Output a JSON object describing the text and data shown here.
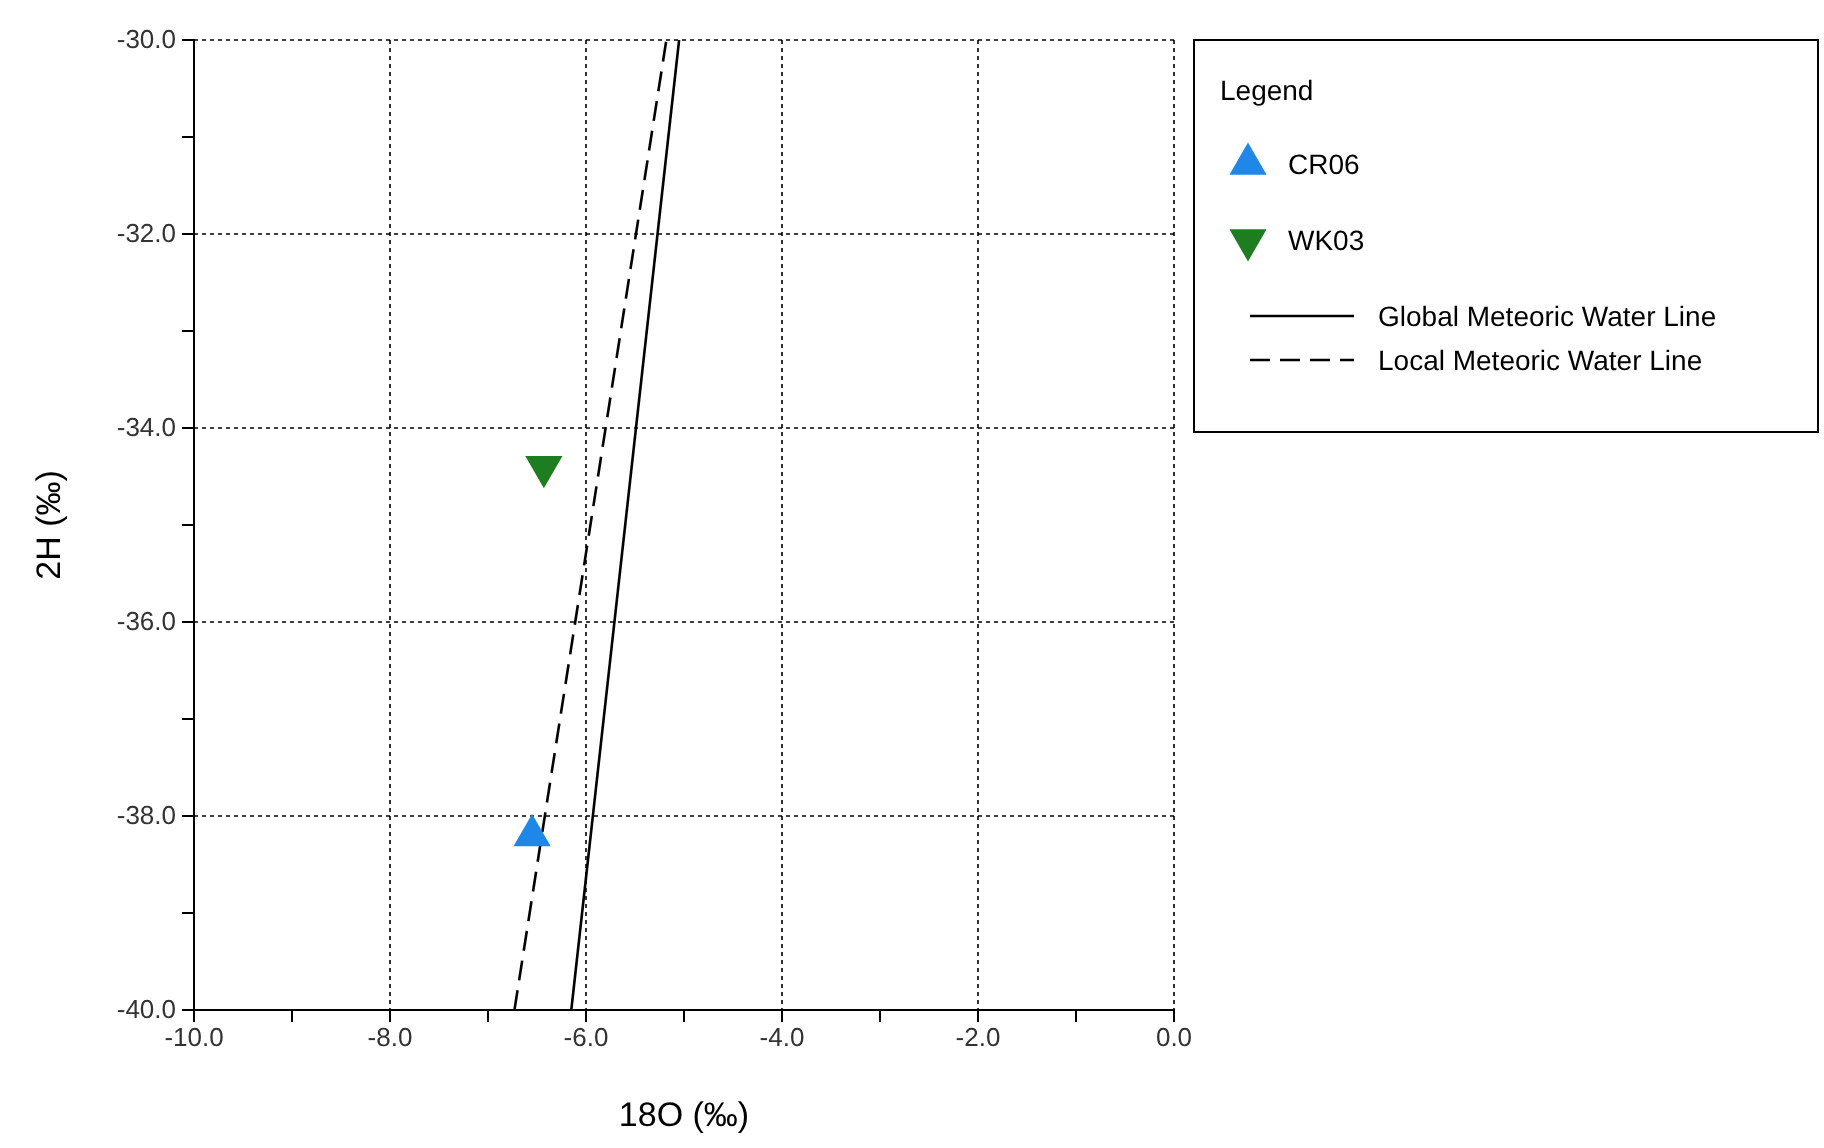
{
  "chart_data": {
    "type": "scatter",
    "xlabel": "18O (‰)",
    "ylabel": "2H (‰)",
    "legend_title": "Legend",
    "legend": "right",
    "grid": true,
    "xlim": [
      -10,
      0
    ],
    "ylim": [
      -40,
      -30
    ],
    "xticks": [
      {
        "value": -10,
        "label": "-10.0"
      },
      {
        "value": -9,
        "label": null
      },
      {
        "value": -8,
        "label": "-8.0"
      },
      {
        "value": -7,
        "label": null
      },
      {
        "value": -6,
        "label": "-6.0"
      },
      {
        "value": -5,
        "label": null
      },
      {
        "value": -4,
        "label": "-4.0"
      },
      {
        "value": -3,
        "label": null
      },
      {
        "value": -2,
        "label": "-2.0"
      },
      {
        "value": -1,
        "label": null
      },
      {
        "value": 0,
        "label": "0.0"
      }
    ],
    "yticks": [
      {
        "value": -40,
        "label": "-40.0"
      },
      {
        "value": -39,
        "label": null
      },
      {
        "value": -38,
        "label": "-38.0"
      },
      {
        "value": -37,
        "label": null
      },
      {
        "value": -36,
        "label": "-36.0"
      },
      {
        "value": -35,
        "label": null
      },
      {
        "value": -34,
        "label": "-34.0"
      },
      {
        "value": -33,
        "label": null
      },
      {
        "value": -32,
        "label": "-32.0"
      },
      {
        "value": -31,
        "label": null
      },
      {
        "value": -30,
        "label": "-30.0"
      }
    ],
    "series": [
      {
        "name": "CR06",
        "marker": "triangle",
        "color": "#1f87e8",
        "x": [
          -6.55
        ],
        "values": [
          -38.2
        ]
      },
      {
        "name": "WK03",
        "marker": "triangle-down",
        "color": "#1e7d1e",
        "x": [
          -6.43
        ],
        "values": [
          -34.4
        ]
      },
      {
        "name": "Global Meteoric Water Line",
        "type": "line",
        "marker": "none",
        "line_style": "solid",
        "color": "#000000",
        "x": [
          -6.15,
          -5.05
        ],
        "values": [
          -40,
          -30
        ]
      },
      {
        "name": "Local Meteoric Water Line",
        "type": "line",
        "marker": "none",
        "line_style": "dashed",
        "color": "#000000",
        "x": [
          -6.73,
          -5.18
        ],
        "values": [
          -40,
          -30
        ]
      }
    ]
  }
}
